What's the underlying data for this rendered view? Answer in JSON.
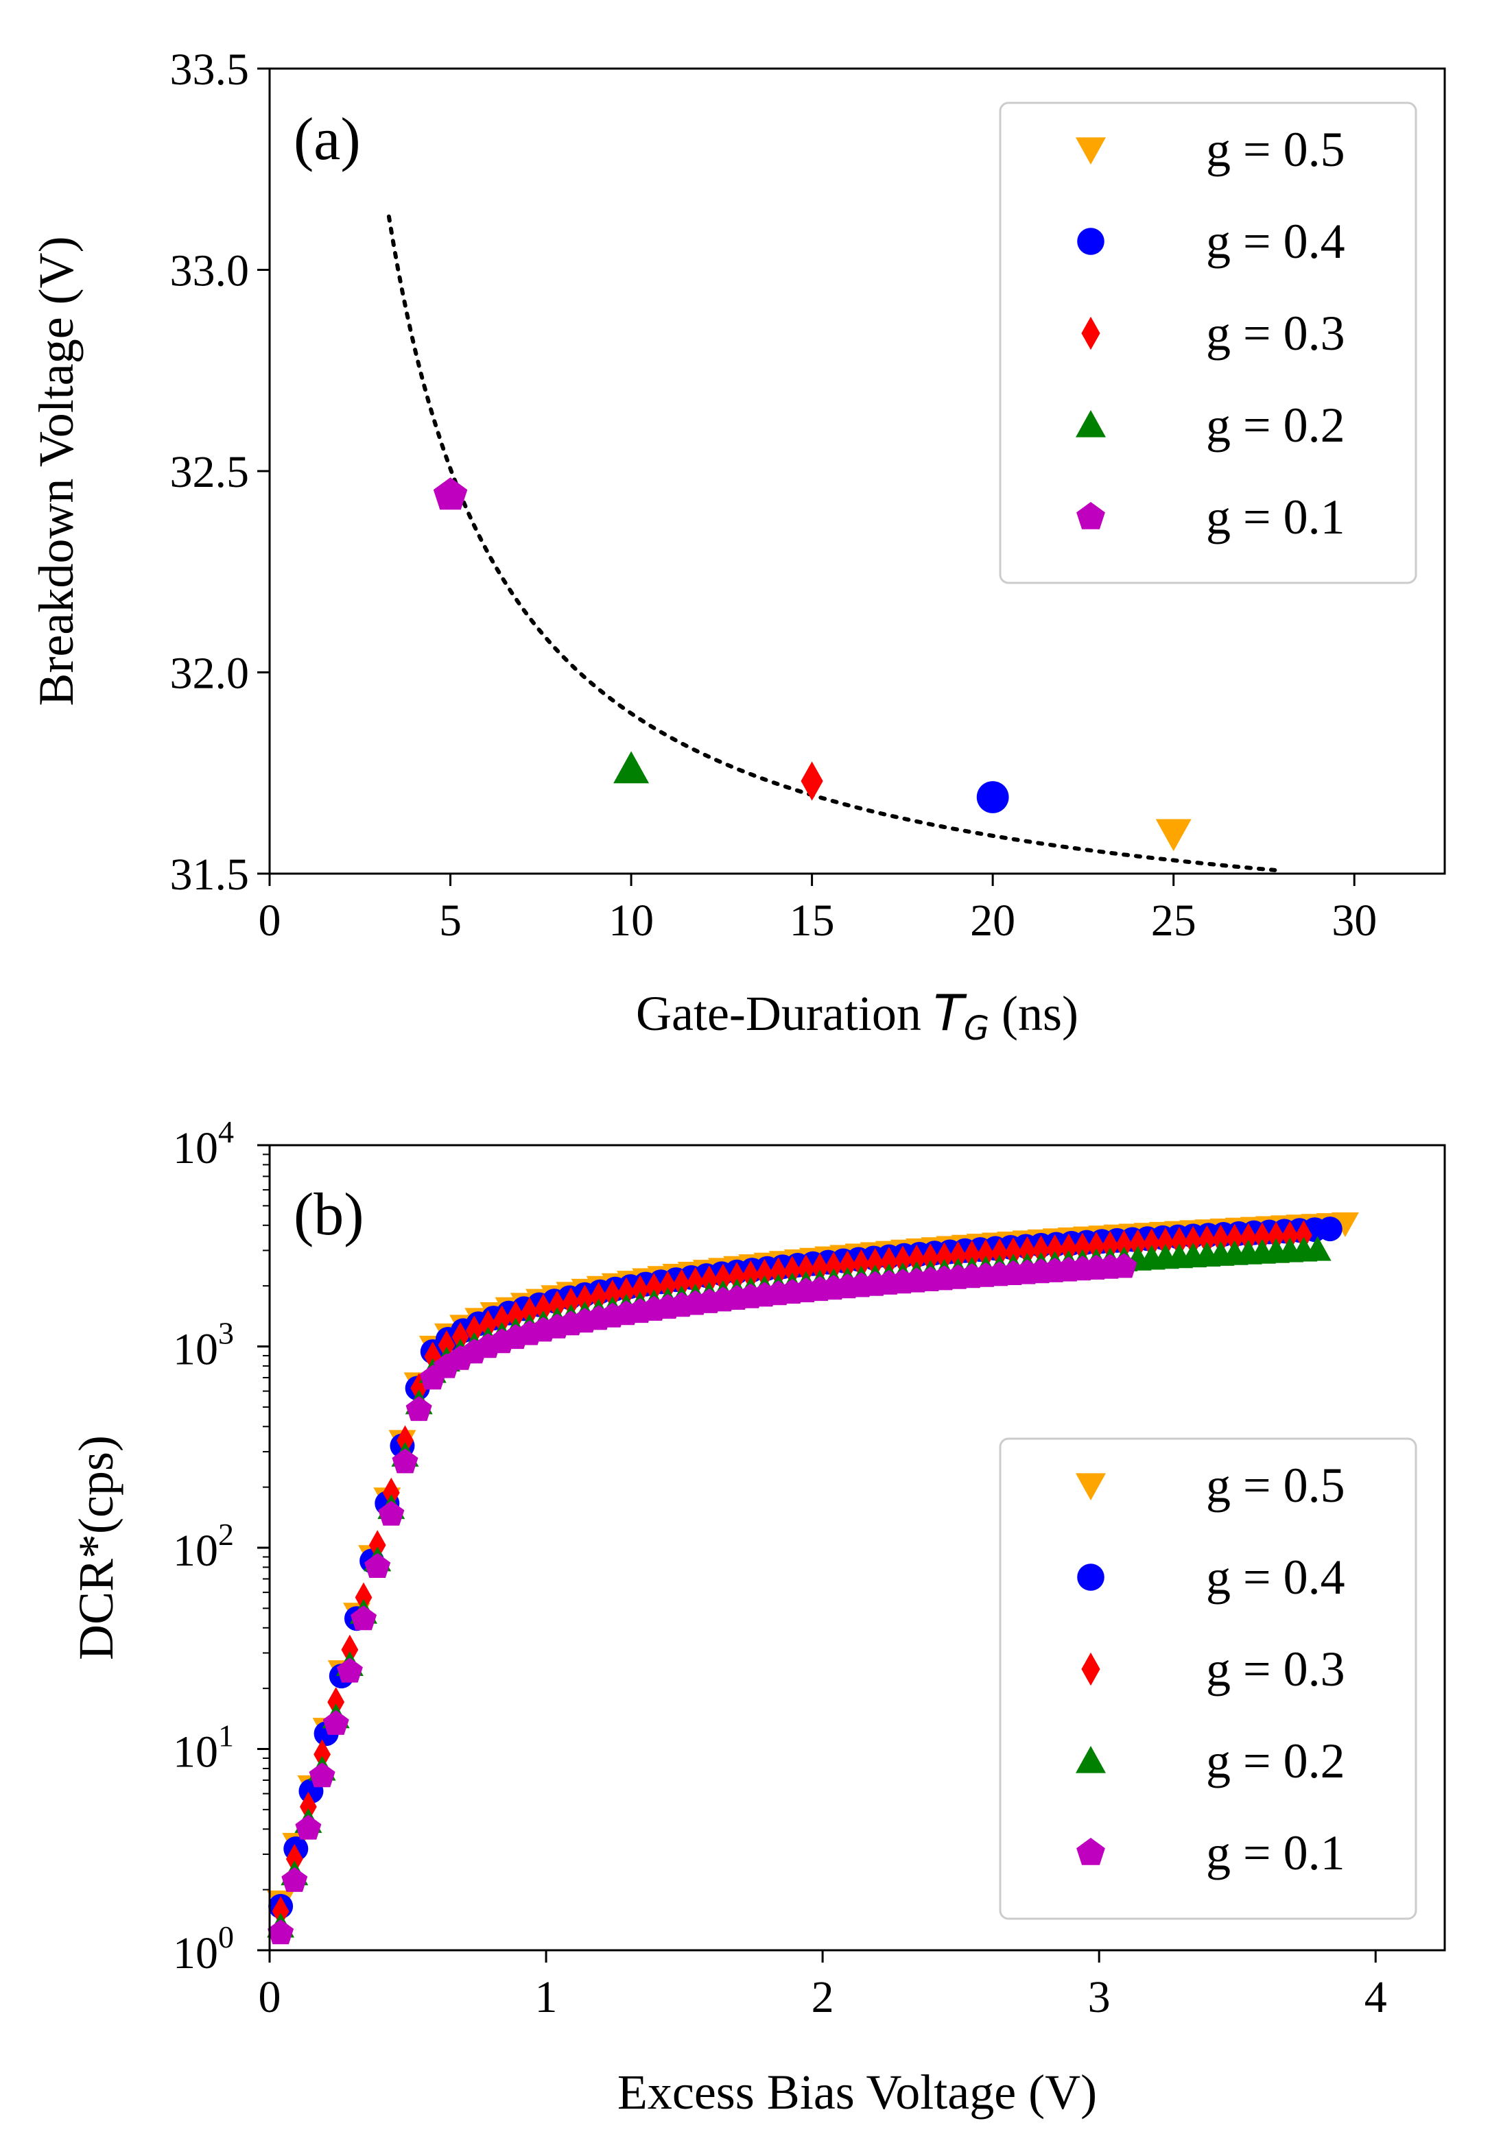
{
  "chart_data": [
    {
      "type": "scatter",
      "panel_label": "(a)",
      "xlabel_prefix": "Gate-Duration ",
      "xlabel_symbol": "T",
      "xlabel_subscript": "G",
      "xlabel_suffix": " (ns)",
      "ylabel": "Breakdown Voltage (V)",
      "xlim": [
        0,
        32.5
      ],
      "ylim": [
        31.5,
        33.5
      ],
      "xticks": [
        0,
        5,
        10,
        15,
        20,
        25,
        30
      ],
      "xtick_labels": [
        "0",
        "5",
        "10",
        "15",
        "20",
        "25",
        "30"
      ],
      "yticks": [
        31.5,
        32.0,
        32.5,
        33.0,
        33.5
      ],
      "ytick_labels": [
        "31.5",
        "32.0",
        "32.5",
        "33.0",
        "33.5"
      ],
      "legend_position": "top-right",
      "series": [
        {
          "name": "g = 0.5",
          "marker": "triangle-down",
          "color": "#ffa500",
          "x": [
            25
          ],
          "y": [
            31.6
          ]
        },
        {
          "name": "g = 0.4",
          "marker": "circle",
          "color": "#0000ff",
          "x": [
            20
          ],
          "y": [
            31.69
          ]
        },
        {
          "name": "g = 0.3",
          "marker": "diamond",
          "color": "#ff0000",
          "x": [
            15
          ],
          "y": [
            31.73
          ]
        },
        {
          "name": "g = 0.2",
          "marker": "triangle-up",
          "color": "#008000",
          "x": [
            10
          ],
          "y": [
            31.76
          ]
        },
        {
          "name": "g = 0.1",
          "marker": "pentagon",
          "color": "#bf00bf",
          "x": [
            5
          ],
          "y": [
            32.44
          ]
        }
      ],
      "fit": {
        "style": "dotted",
        "color": "#000000",
        "model": "y = 31.29 + 6.08 / x",
        "x_range": [
          3.3,
          27.8
        ]
      }
    },
    {
      "type": "scatter",
      "panel_label": "(b)",
      "xlabel": "Excess Bias Voltage (V)",
      "ylabel": "DCR*(cps)",
      "xlim": [
        0,
        4.25
      ],
      "ylim": [
        1,
        10000
      ],
      "yscale": "log",
      "xticks": [
        0,
        1,
        2,
        3,
        4
      ],
      "xtick_labels": [
        "0",
        "1",
        "2",
        "3",
        "4"
      ],
      "yticks": [
        1,
        10,
        100,
        1000,
        10000
      ],
      "ytick_base": "10",
      "ytick_exponents": [
        "0",
        "1",
        "2",
        "3",
        "4"
      ],
      "legend_position": "center-right",
      "series": [
        {
          "name": "g = 0.5",
          "marker": "triangle-down",
          "color": "#ffa500",
          "x_max": 3.92,
          "x_step": 0.055,
          "y_scale": 1.12
        },
        {
          "name": "g = 0.4",
          "marker": "circle",
          "color": "#0000ff",
          "x_max": 3.84,
          "x_step": 0.055,
          "y_scale": 1.06
        },
        {
          "name": "g = 0.3",
          "marker": "diamond",
          "color": "#ff0000",
          "x_max": 3.78,
          "x_step": 0.05,
          "y_scale": 1.0
        },
        {
          "name": "g = 0.2",
          "marker": "triangle-up",
          "color": "#008000",
          "x_max": 3.8,
          "x_step": 0.05,
          "y_scale": 0.84
        },
        {
          "name": "g = 0.1",
          "marker": "pentagon",
          "color": "#bf00bf",
          "x_max": 3.1,
          "x_step": 0.05,
          "y_scale": 0.78
        }
      ],
      "model": {
        "x_knee": 0.55,
        "y_at_knee": 700,
        "low_slope_decades_per_volt": 5.2,
        "high_curve": "y = 700 + 2900 * ((x - 0.55) / 3.25)^0.62"
      }
    }
  ]
}
